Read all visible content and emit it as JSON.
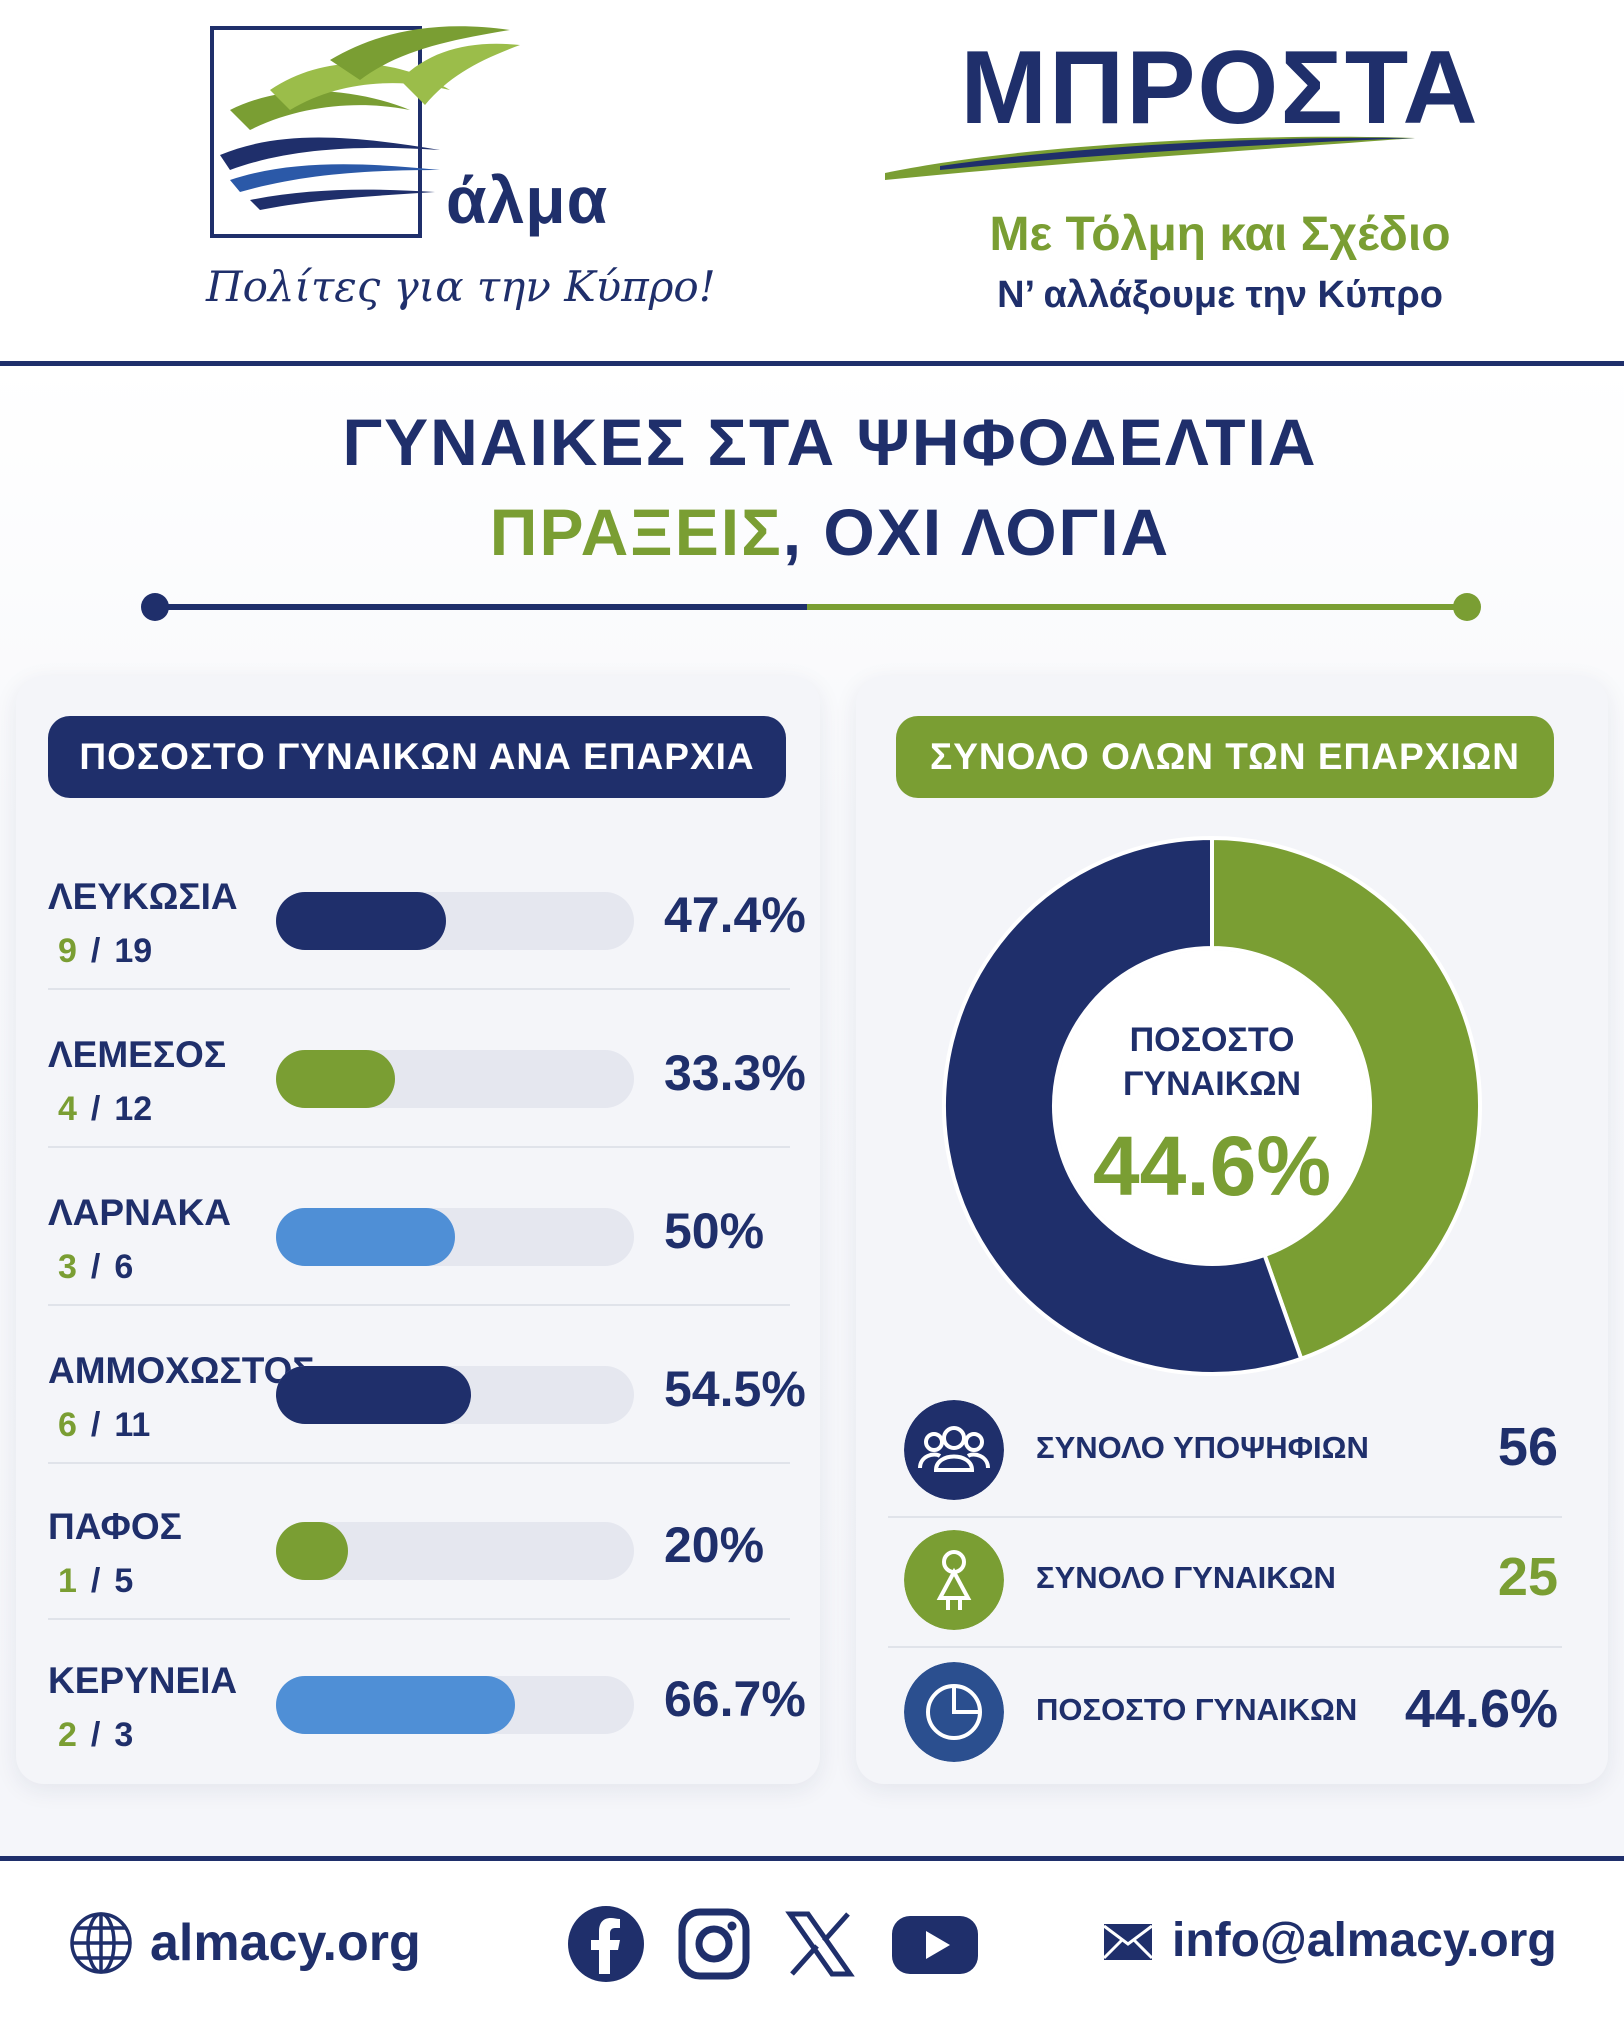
{
  "header": {
    "logo_word": "άλμα",
    "logo_slogan": "Πολίτες για την Κύπρο!",
    "brand_title": "ΜΠΡΟΣΤΑ",
    "brand_sub1": "Με Τόλμη και Σχέδιο",
    "brand_sub2": "Ν’ αλλάξουμε την Κύπρο"
  },
  "titles": {
    "line1": "ΓΥΝΑΙΚΕΣ ΣΤΑ ΨΗΦΟΔΕΛΤΙΑ",
    "line2_green": "ΠΡΑΞΕΙΣ",
    "line2_blue": ", ΟΧΙ ΛΟΓΙΑ"
  },
  "left_panel": {
    "pill": "ΠΟΣΟΣΤΟ ΓΥΝΑΙΚΩΝ ΑΝΑ ΕΠΑΡΧΙΑ"
  },
  "right_panel": {
    "pill": "ΣΥΝΟΛΟ ΟΛΩΝ ΤΩΝ ΕΠΑΡΧΙΩΝ",
    "donut_label_1": "ΠΟΣΟΣΤΟ",
    "donut_label_2": "ΓΥΝΑΙΚΩΝ",
    "donut_value": "44.6%",
    "stats": [
      {
        "label": "ΣΥΝΟΛΟ ΥΠΟΨΗΦΙΩΝ",
        "value": "56",
        "icon": "group-icon"
      },
      {
        "label": "ΣΥΝΟΛΟ ΓΥΝΑΙΚΩΝ",
        "value": "25",
        "icon": "woman-icon"
      },
      {
        "label": "ΠΟΣΟΣΤΟ ΓΥΝΑΙΚΩΝ",
        "value": "44.6%",
        "icon": "pie-icon"
      }
    ]
  },
  "chart_data": [
    {
      "type": "bar",
      "title": "ΠΟΣΟΣΤΟ ΓΥΝΑΙΚΩΝ ΑΝΑ ΕΠΑΡΧΙΑ",
      "categories": [
        "ΛΕΥΚΩΣΙΑ",
        "ΛΕΜΕΣΟΣ",
        "ΛΑΡΝΑΚΑ",
        "ΑΜΜΟΧΩΣΤΟΣ",
        "ΠΑΦΟΣ",
        "ΚΕΡΥΝΕΙΑ"
      ],
      "values": [
        47.4,
        33.3,
        50,
        54.5,
        20,
        66.7
      ],
      "value_labels": [
        "47.4%",
        "33.3%",
        "50%",
        "54.5%",
        "20%",
        "66.7%"
      ],
      "women": [
        "9",
        "4",
        "3",
        "6",
        "1",
        "2"
      ],
      "totals": [
        "19",
        "12",
        "6",
        "11",
        "5",
        "3"
      ],
      "ylim": [
        0,
        100
      ],
      "colors": [
        "#1f2f6b",
        "#7a9e33",
        "#4f8fd6",
        "#1f2f6b",
        "#7a9e33",
        "#4f8fd6"
      ]
    },
    {
      "type": "pie",
      "title": "ΣΥΝΟΛΟ ΟΛΩΝ ΤΩΝ ΕΠΑΡΧΙΩΝ",
      "values": [
        44.6,
        55.4
      ],
      "colors": [
        "#7a9e33",
        "#1f2f6b"
      ]
    }
  ],
  "footer": {
    "site": "almacy.org",
    "email": "info@almacy.org",
    "social": [
      "facebook-icon",
      "instagram-icon",
      "x-icon",
      "youtube-icon"
    ]
  },
  "colors": {
    "navy": "#1f2f6b",
    "green": "#7a9e33",
    "light_blue": "#4f8fd6"
  }
}
